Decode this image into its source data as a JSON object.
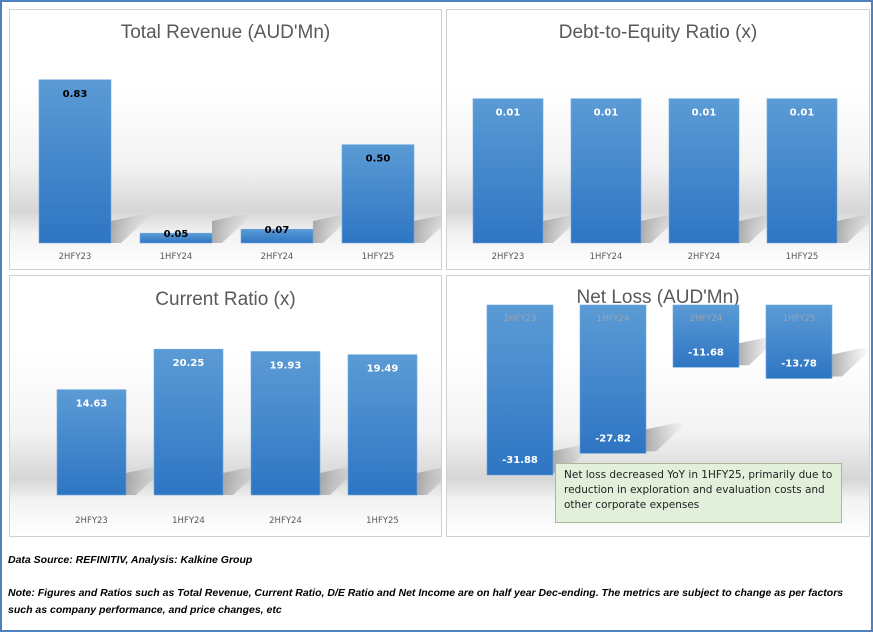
{
  "chart_data": [
    {
      "type": "bar",
      "title": "Total Revenue (AUD'Mn)",
      "categories": [
        "2HFY23",
        "1HFY24",
        "2HFY24",
        "1HFY25"
      ],
      "values": [
        0.83,
        0.05,
        0.07,
        0.5
      ],
      "labels": [
        "0.83",
        "0.05",
        "0.07",
        "0.50"
      ],
      "label_color": "#000000",
      "ylim": [
        0,
        0.9
      ],
      "xlabel": "",
      "ylabel": "",
      "grid": false
    },
    {
      "type": "bar",
      "title": "Debt-to-Equity Ratio (x)",
      "categories": [
        "2HFY23",
        "1HFY24",
        "2HFY24",
        "1HFY25"
      ],
      "values": [
        0.01,
        0.01,
        0.01,
        0.01
      ],
      "labels": [
        "0.01",
        "0.01",
        "0.01",
        "0.01"
      ],
      "label_color": "#ffffff",
      "ylim": [
        0,
        0.0115
      ],
      "xlabel": "",
      "ylabel": "",
      "grid": false
    },
    {
      "type": "bar",
      "title": "Current Ratio (x)",
      "categories": [
        "2HFY23",
        "1HFY24",
        "2HFY24",
        "1HFY25"
      ],
      "values": [
        14.63,
        20.25,
        19.93,
        19.49
      ],
      "labels": [
        "14.63",
        "20.25",
        "19.93",
        "19.49"
      ],
      "label_color": "#ffffff",
      "ylim": [
        0,
        25
      ],
      "xlabel": "",
      "ylabel": "",
      "grid": false
    },
    {
      "type": "bar",
      "title": "Net Loss (AUD'Mn)",
      "categories": [
        "2HFY23",
        "1HFY24",
        "2HFY24",
        "1HFY25"
      ],
      "values": [
        -31.88,
        -27.82,
        -11.68,
        -13.78
      ],
      "labels": [
        "-31.88",
        "-27.82",
        "-11.68",
        "-13.78"
      ],
      "label_color": "#ffffff",
      "ylim": [
        -33,
        0
      ],
      "xlabel": "",
      "ylabel": "",
      "grid": false,
      "annotation": "Net loss decreased YoY in 1HFY25, primarily due to reduction in exploration and evaluation costs and other corporate expenses"
    }
  ],
  "colors": {
    "bar_top": "#5b9bd5",
    "bar_bottom": "#2e75c3",
    "frame": "#4f81bd",
    "callout_bg": "#e2efda"
  },
  "footer": {
    "source": "Data Source: REFINITIV, Analysis: Kalkine Group",
    "note": "Note: Figures and Ratios such as Total Revenue, Current Ratio, D/E Ratio and Net Income are on half year Dec-ending. The metrics are subject to change as per factors such as company performance, and price changes, etc"
  }
}
